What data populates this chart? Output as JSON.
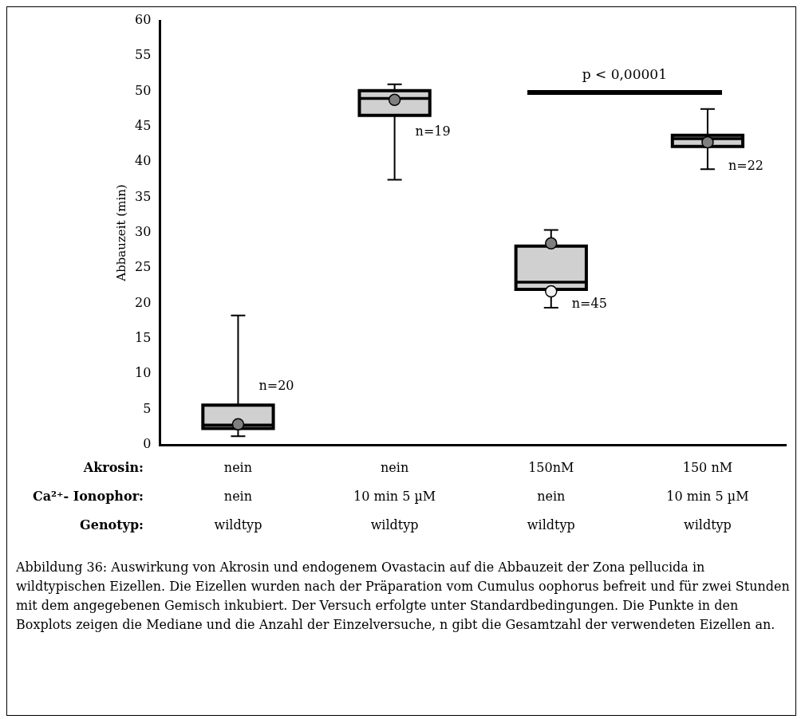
{
  "chart_data": {
    "type": "box",
    "ylabel": "Abbauzeit (min)",
    "categories": [
      "nein\nnein\nwildtyp",
      "nein\n10 min 5 µM\nwildtyp",
      "150nM\nnein\nwildtyp",
      "150 nM\n10 min 5 µM\nwildtyp"
    ],
    "boxes": [
      {
        "low": 1.2,
        "q1": 2.3,
        "median": 2.8,
        "q3": 5.6,
        "high": 18.3
      },
      {
        "low": 37.5,
        "q1": 46.6,
        "median": 49.0,
        "q3": 50.1,
        "high": 51.0
      },
      {
        "low": 19.4,
        "q1": 22.0,
        "median": 23.0,
        "q3": 28.1,
        "high": 30.4
      },
      {
        "low": 39.0,
        "q1": 42.2,
        "median": 43.3,
        "q3": 43.8,
        "high": 47.5
      }
    ],
    "color": "#d0d0d0",
    "series": [
      {
        "type": "scatter",
        "color": "#7f7f7f",
        "x": [
          "nein\nnein\nwildtyp",
          "nein\n10 min 5 µM\nwildtyp",
          "150nM\nnein\nwildtyp",
          "150 nM\n10 min 5 µM\nwildtyp"
        ],
        "values": [
          2.9,
          48.8,
          28.5,
          42.8
        ]
      },
      {
        "type": "scatter",
        "color": "#f2f2f2",
        "x": [
          "150nM\nnein\nwildtyp"
        ],
        "values": [
          21.7
        ]
      }
    ],
    "marker": "circle",
    "ylim": [
      0,
      60
    ],
    "yticks": [
      0,
      5,
      10,
      15,
      20,
      25,
      30,
      35,
      40,
      45,
      50,
      55,
      60
    ],
    "grid": false,
    "legend": false,
    "annotations": [
      "Akrosin:",
      "Ca²⁺- Ionophor:",
      "Genotyp:",
      "p < 0,00001",
      "Abbildung 36: Auswirkung von Akrosin und endogenem Ovastacin auf die Abbauzeit der Zona pellucida in wildtypischen Eizellen. Die Eizellen wurden nach der Präparation vom Cumulus oophorus befreit und für zwei Stunden mit dem angegebenen Gemisch inkubiert. Der Versuch erfolgte unter Standardbedingungen. Die Punkte in den Boxplots zeigen die Mediane und die Anzahl der Einzelversuche, n gibt die Gesamtzahl der verwendeten Eizellen an.",
      {
        "text": "n=20",
        "x": "nein\nnein\nwildtyp",
        "y": 8.3
      },
      {
        "text": "n=19",
        "x": "nein\n10 min 5 µM\nwildtyp",
        "y": 44.2
      },
      {
        "text": "n=45",
        "x": "150nM\nnein\nwildtyp",
        "y": 19.9
      },
      {
        "text": "n=22",
        "x": "150 nM\n10 min 5 µM\nwildtyp",
        "y": 39.4
      }
    ]
  }
}
